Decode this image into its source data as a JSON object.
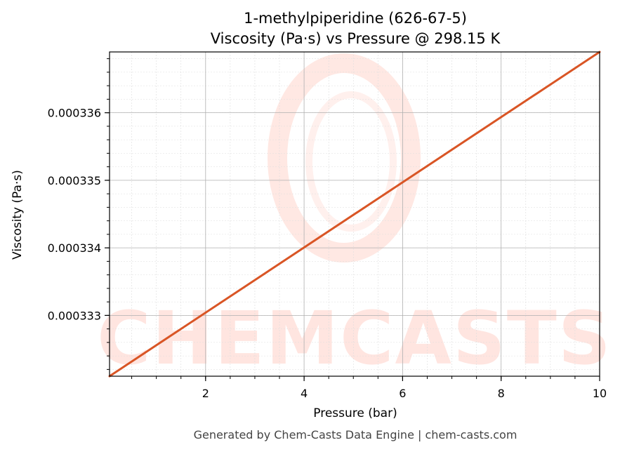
{
  "chart_data": {
    "type": "line",
    "title": "1-methylpiperidine (626-67-5)",
    "subtitle": "Viscosity (Pa·s) vs Pressure @ 298.15 K",
    "xlabel": "Pressure (bar)",
    "ylabel": "Viscosity (Pa·s)",
    "xlim": [
      0.05,
      10
    ],
    "ylim": [
      0.0003321,
      0.0003369
    ],
    "x_ticks": [
      2,
      4,
      6,
      8,
      10
    ],
    "x_tick_labels": [
      "2",
      "4",
      "6",
      "8",
      "10"
    ],
    "y_ticks": [
      0.000333,
      0.000334,
      0.000335,
      0.000336
    ],
    "y_tick_labels": [
      "0.000333",
      "0.000334",
      "0.000335",
      "0.000336"
    ],
    "grid": true,
    "series": [
      {
        "color": "#d95525",
        "x": [
          0.05,
          10
        ],
        "y": [
          0.0003321,
          0.0003369
        ]
      }
    ]
  },
  "watermark": {
    "text": "CHEMCASTS",
    "color": "#ffe5e0"
  },
  "footer": {
    "text": "Generated by Chem-Casts Data Engine | chem-casts.com"
  }
}
